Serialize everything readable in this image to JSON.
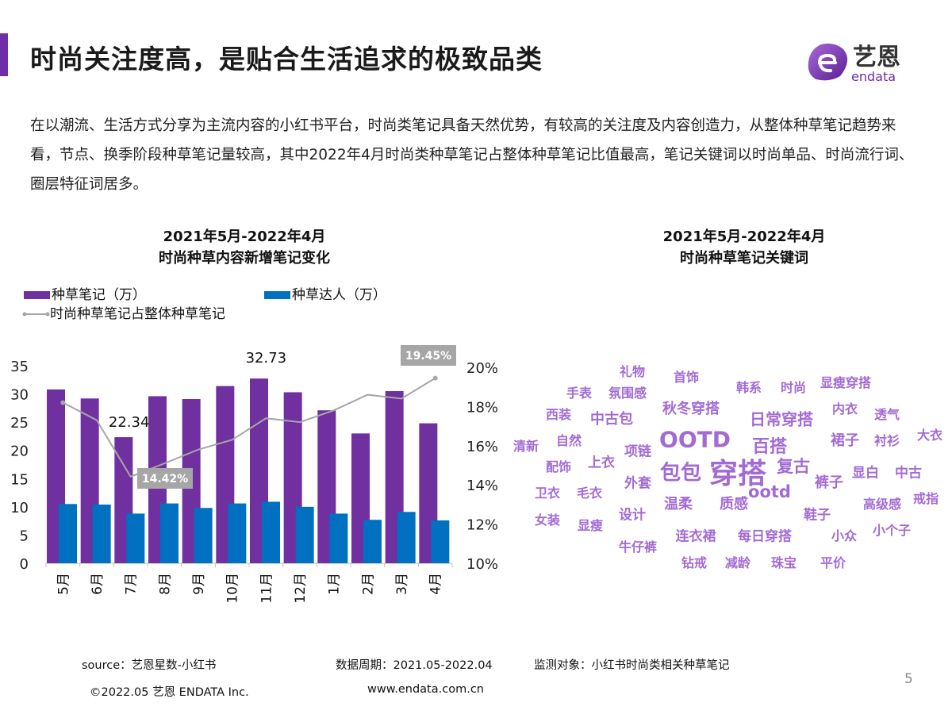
{
  "header": {
    "title": "时尚关注度高，是贴合生活追求的极致品类",
    "logo_cn": "艺恩",
    "logo_en": "endata"
  },
  "paragraph": "在以潮流、生活方式分享为主流内容的小红书平台，时尚类笔记具备天然优势，有较高的关注度及内容创造力，从整体种草笔记趋势来看，节点、换季阶段种草笔记量较高，其中2022年4月时尚类种草笔记占整体种草笔记比值最高，笔记关键词以时尚单品、时尚流行词、圈层特征词居多。",
  "left_chart_title": [
    "2021年5月-2022年4月",
    "时尚种草内容新增笔记变化"
  ],
  "right_chart_title": [
    "2021年5月-2022年4月",
    "时尚种草笔记关键词"
  ],
  "chart_data": [
    {
      "type": "bar",
      "categories": [
        "5月",
        "6月",
        "7月",
        "8月",
        "9月",
        "10月",
        "11月",
        "12月",
        "1月",
        "2月",
        "3月",
        "4月"
      ],
      "series": [
        {
          "name": "种草笔记（万）",
          "axis": "left",
          "type": "bar",
          "color": "#7030a0",
          "values": [
            30.8,
            29.2,
            22.34,
            29.6,
            29.1,
            31.4,
            32.73,
            30.3,
            27.1,
            23.0,
            30.5,
            24.8
          ]
        },
        {
          "name": "种草达人（万）",
          "axis": "left",
          "type": "bar",
          "color": "#0070c0",
          "values": [
            10.5,
            10.4,
            8.8,
            10.6,
            9.8,
            10.6,
            10.9,
            10.0,
            8.8,
            7.7,
            9.1,
            7.6
          ]
        },
        {
          "name": "时尚种草笔记占整体种草笔记",
          "axis": "right",
          "type": "line",
          "color": "#a6a6a6",
          "values": [
            18.2,
            17.3,
            14.42,
            15.1,
            15.8,
            16.3,
            17.4,
            17.2,
            17.8,
            18.6,
            18.4,
            19.45
          ]
        }
      ],
      "left_axis": {
        "ylim": [
          0,
          35
        ],
        "ticks": [
          "0",
          "5",
          "10",
          "15",
          "20",
          "25",
          "30",
          "35"
        ]
      },
      "right_axis": {
        "ylim": [
          10,
          20
        ],
        "ticks": [
          "10%",
          "12%",
          "14%",
          "16%",
          "18%",
          "20%"
        ]
      },
      "data_labels": [
        {
          "series": 0,
          "category": "7月",
          "text": "22.34"
        },
        {
          "series": 0,
          "category": "11月",
          "text": "32.73"
        },
        {
          "series": 2,
          "category": "7月",
          "text": "14.42%"
        },
        {
          "series": 2,
          "category": "4月",
          "text": "19.45%"
        }
      ],
      "legend": "top-left",
      "grid": false
    }
  ],
  "wordcloud": {
    "color": "#9b5fd0",
    "words": [
      "礼物",
      "首饰",
      "韩系",
      "时尚",
      "显瘦穿搭",
      "手表",
      "氛围感",
      "秋冬穿搭",
      "日常穿搭",
      "内衣",
      "透气",
      "西装",
      "中古包",
      "清新",
      "OOTD",
      "百搭",
      "裙子",
      "衬衫",
      "大衣",
      "自然",
      "项链",
      "配饰",
      "上衣",
      "包包",
      "穿搭",
      "复古",
      "显白",
      "中古",
      "外套",
      "裤子",
      "卫衣",
      "毛衣",
      "温柔",
      "质感",
      "ootd",
      "高级感",
      "戒指",
      "鞋子",
      "女装",
      "显瘦",
      "设计",
      "连衣裙",
      "每日穿搭",
      "小众",
      "小个子",
      "牛仔裤",
      "钻戒",
      "减龄",
      "珠宝",
      "平价"
    ]
  },
  "footer": {
    "source": "source：艺恩星数-小红书",
    "period": "数据周期：2021.05-2022.04",
    "target": "监测对象：小红书时尚类相关种草笔记",
    "copyright": "©2022.05 艺恩 ENDATA Inc.",
    "website": "www.endata.com.cn",
    "page": "5"
  }
}
